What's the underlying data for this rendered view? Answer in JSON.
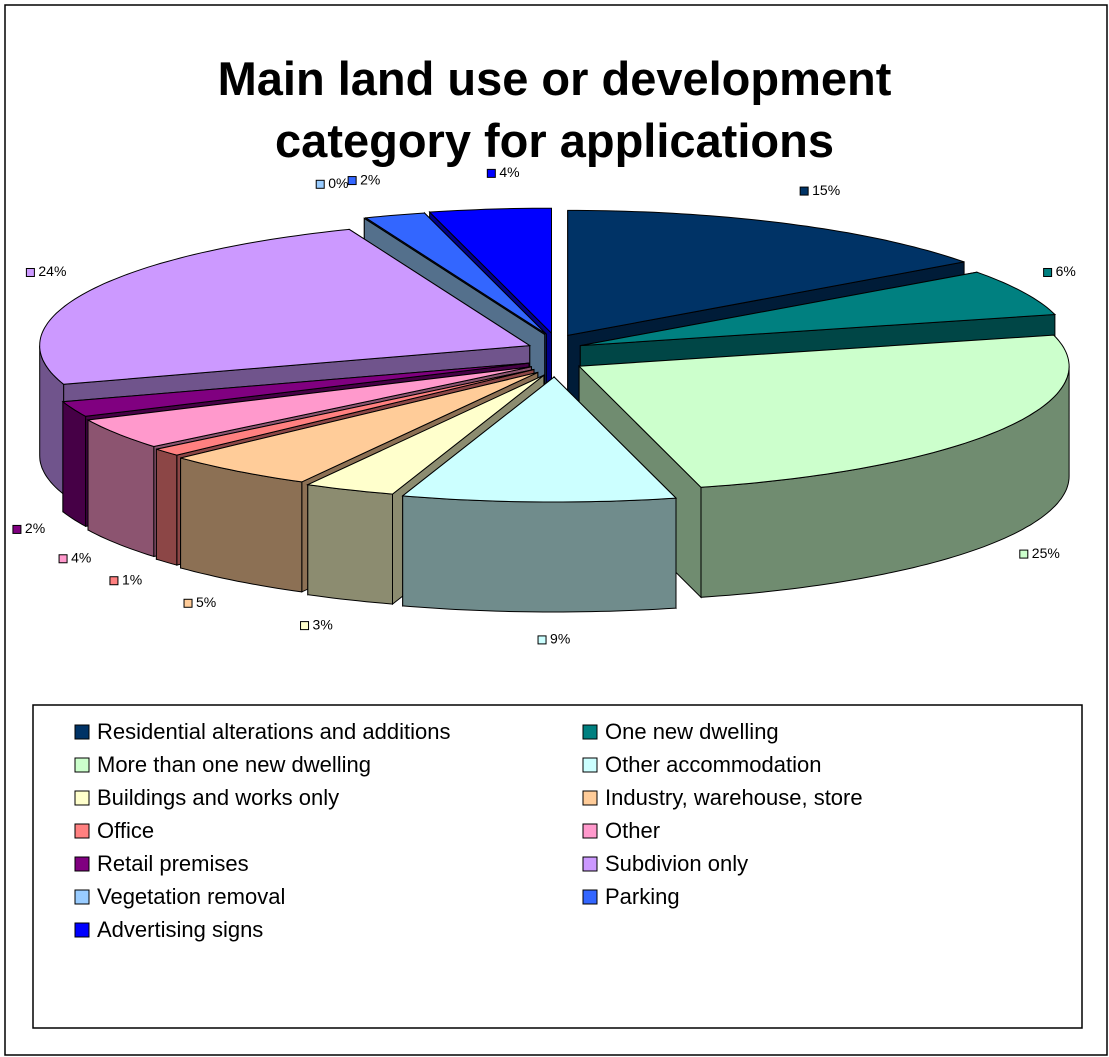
{
  "chart_data": {
    "type": "pie",
    "title": "Main land use or development category for applications",
    "categories": [
      "Residential alterations and additions",
      "One new dwelling",
      "More than one new dwelling",
      "Other accommodation",
      "Buildings and works only",
      "Industry, warehouse, store",
      "Office",
      "Other",
      "Retail premises",
      "Subdivion only",
      "Vegetation removal",
      "Parking",
      "Advertising signs"
    ],
    "values": [
      15,
      6,
      25,
      9,
      3,
      5,
      1,
      4,
      2,
      24,
      0,
      2,
      4
    ],
    "value_labels": [
      "15%",
      "6%",
      "25%",
      "9%",
      "3%",
      "5%",
      "1%",
      "4%",
      "2%",
      "24%",
      "0%",
      "2%",
      "4%"
    ],
    "colors": [
      "#003366",
      "#008080",
      "#CCFFCC",
      "#CCFFFF",
      "#FFFFCC",
      "#FFCC99",
      "#FF8080",
      "#FF99CC",
      "#800080",
      "#CC99FF",
      "#99CCFF",
      "#3366FF",
      "#0000FF"
    ],
    "legend": "bottom"
  }
}
